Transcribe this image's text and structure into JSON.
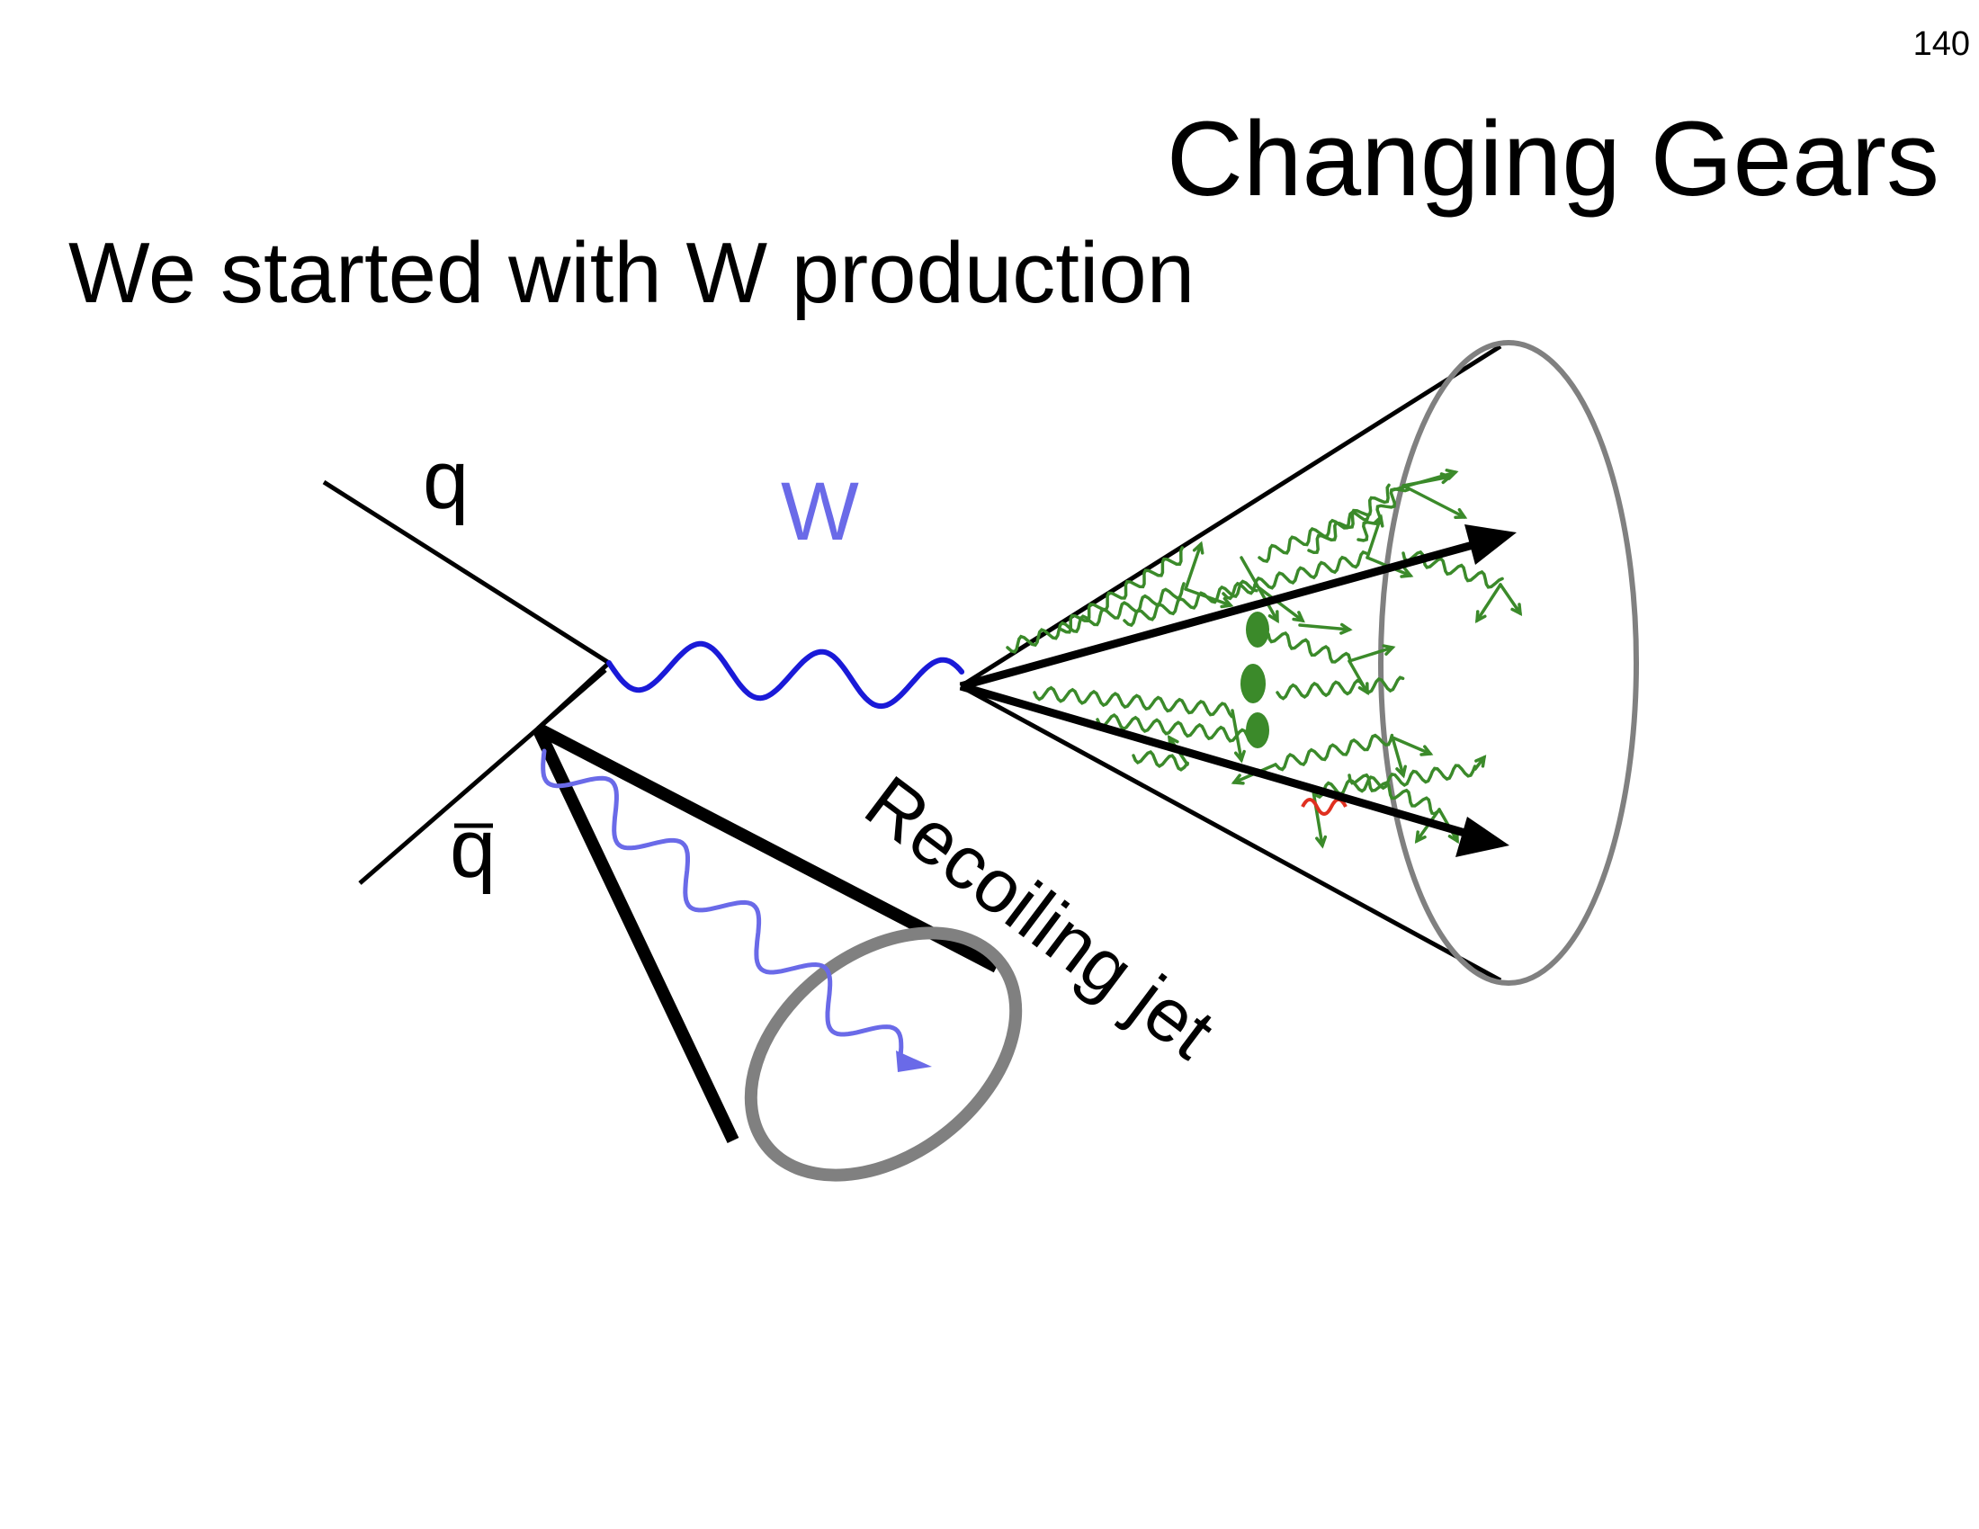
{
  "page_number": "140",
  "title": "Changing Gears",
  "subtitle": "We started with W production",
  "diagram": {
    "quark_label": "q",
    "antiquark_label": "q",
    "boson_label": "W",
    "recoil_label": "Recoiling jet"
  },
  "colors": {
    "w_boson": "#1a1ad8",
    "w_label": "#6a6ae8",
    "recoil_gluon": "#6a6ae8",
    "jet_shower": "#3b8a2a",
    "cone_rim": "#808080",
    "highlight": "#e03020"
  }
}
